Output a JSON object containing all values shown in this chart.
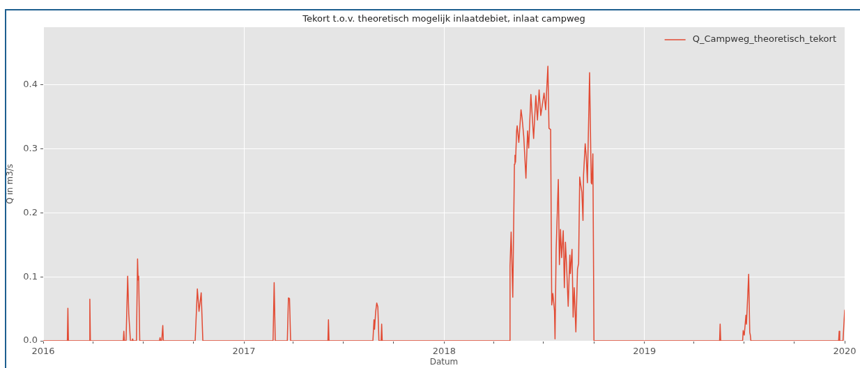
{
  "chart_data": {
    "type": "line",
    "title": "Tekort t.o.v. theoretisch mogelijk inlaatdebiet, inlaat campweg",
    "xlabel": "Datum",
    "ylabel": "Q in m3/s",
    "x": [
      "2016-01-01",
      "2016-02-14",
      "2016-02-15",
      "2016-02-16",
      "2016-03-25",
      "2016-03-26",
      "2016-03-27",
      "2016-05-26",
      "2016-05-27",
      "2016-05-28",
      "2016-05-31",
      "2016-06-03",
      "2016-06-05",
      "2016-06-08",
      "2016-06-11",
      "2016-06-12",
      "2016-06-13",
      "2016-06-19",
      "2016-06-21",
      "2016-06-22",
      "2016-06-23",
      "2016-06-25",
      "2016-07-31",
      "2016-08-01",
      "2016-08-02",
      "2016-08-04",
      "2016-08-06",
      "2016-08-07",
      "2016-10-04",
      "2016-10-08",
      "2016-10-11",
      "2016-10-15",
      "2016-10-18",
      "2017-02-23",
      "2017-02-25",
      "2017-02-27",
      "2017-03-21",
      "2017-03-23",
      "2017-03-25",
      "2017-03-27",
      "2017-06-03",
      "2017-06-04",
      "2017-06-05",
      "2017-08-24",
      "2017-08-26",
      "2017-08-27",
      "2017-08-29",
      "2017-08-31",
      "2017-09-02",
      "2017-09-04",
      "2017-09-08",
      "2017-09-09",
      "2017-09-10",
      "2018-04-30",
      "2018-05-01",
      "2018-05-03",
      "2018-05-06",
      "2018-05-09",
      "2018-05-10",
      "2018-05-11",
      "2018-05-13",
      "2018-05-14",
      "2018-05-17",
      "2018-05-21",
      "2018-05-23",
      "2018-05-26",
      "2018-05-30",
      "2018-06-02",
      "2018-06-04",
      "2018-06-08",
      "2018-06-13",
      "2018-06-17",
      "2018-06-20",
      "2018-06-23",
      "2018-06-26",
      "2018-07-02",
      "2018-07-05",
      "2018-07-09",
      "2018-07-11",
      "2018-07-14",
      "2018-07-16",
      "2018-07-18",
      "2018-07-21",
      "2018-07-22",
      "2018-07-24",
      "2018-07-28",
      "2018-07-30",
      "2018-08-01",
      "2018-08-03",
      "2018-08-06",
      "2018-08-08",
      "2018-08-10",
      "2018-08-12",
      "2018-08-15",
      "2018-08-18",
      "2018-08-19",
      "2018-08-22",
      "2018-08-24",
      "2018-08-26",
      "2018-08-29",
      "2018-09-01",
      "2018-09-03",
      "2018-09-05",
      "2018-09-07",
      "2018-09-09",
      "2018-09-11",
      "2018-09-12",
      "2018-09-15",
      "2018-09-17",
      "2018-09-19",
      "2018-09-23",
      "2018-09-26",
      "2018-09-27",
      "2018-09-29",
      "2018-10-01",
      "2019-05-18",
      "2019-05-19",
      "2019-05-20",
      "2019-06-29",
      "2019-06-30",
      "2019-07-02",
      "2019-07-05",
      "2019-07-06",
      "2019-07-10",
      "2019-07-12",
      "2019-07-13",
      "2019-07-14",
      "2019-12-21",
      "2019-12-22",
      "2019-12-23",
      "2019-12-29",
      "2020-01-01"
    ],
    "series": [
      {
        "name": "Q_Campweg_theoretisch_tekort",
        "color": "#e24a33",
        "values": [
          0,
          0,
          0.051,
          0,
          0,
          0.065,
          0,
          0,
          0.015,
          0,
          0,
          0.101,
          0.042,
          0,
          0,
          0.003,
          0,
          0,
          0.128,
          0.095,
          0.101,
          0,
          0,
          0.005,
          0,
          0,
          0.024,
          0,
          0,
          0.081,
          0.046,
          0.075,
          0,
          0,
          0.091,
          0,
          0,
          0.067,
          0.066,
          0,
          0,
          0.033,
          0,
          0,
          0.033,
          0.018,
          0.045,
          0.059,
          0.053,
          0,
          0,
          0.026,
          0,
          0,
          0.117,
          0.17,
          0.068,
          0.276,
          0.29,
          0.279,
          0.328,
          0.336,
          0.31,
          0.361,
          0.348,
          0.319,
          0.254,
          0.328,
          0.301,
          0.385,
          0.316,
          0.383,
          0.345,
          0.392,
          0.352,
          0.387,
          0.361,
          0.429,
          0.332,
          0.33,
          0.056,
          0.074,
          0.047,
          0.003,
          0.141,
          0.252,
          0.119,
          0.174,
          0.13,
          0.172,
          0.083,
          0.154,
          0.119,
          0.054,
          0.134,
          0.105,
          0.143,
          0.037,
          0.083,
          0.014,
          0.112,
          0.121,
          0.256,
          0.243,
          0.232,
          0.188,
          0.259,
          0.308,
          0.287,
          0.247,
          0.419,
          0.247,
          0.245,
          0.292,
          0,
          0,
          0.026,
          0,
          0,
          0.016,
          0.009,
          0.04,
          0.026,
          0.104,
          0.013,
          0.009,
          0,
          0,
          0.015,
          0,
          0,
          0.048
        ]
      }
    ],
    "xlim": [
      "2016-01-01",
      "2020-01-01"
    ],
    "xticks": [
      "2016",
      {
        "value": "2016-04",
        "label": null
      },
      {
        "value": "2016-07",
        "label": null
      },
      {
        "value": "2016-10",
        "label": null
      },
      "2017",
      {
        "value": "2017-04",
        "label": null
      },
      {
        "value": "2017-07",
        "label": null
      },
      {
        "value": "2017-10",
        "label": null
      },
      "2018",
      {
        "value": "2018-04",
        "label": null
      },
      {
        "value": "2018-07",
        "label": null
      },
      {
        "value": "2018-10",
        "label": null
      },
      "2019",
      {
        "value": "2019-04",
        "label": null
      },
      {
        "value": "2019-07",
        "label": null
      },
      {
        "value": "2019-10",
        "label": null
      },
      "2020"
    ],
    "ylim": [
      0,
      0.49
    ],
    "yticks": [
      {
        "value": 0,
        "label": "0.0"
      },
      0.1,
      0.2,
      0.3,
      0.4
    ],
    "grid": true,
    "legend": "top right"
  }
}
